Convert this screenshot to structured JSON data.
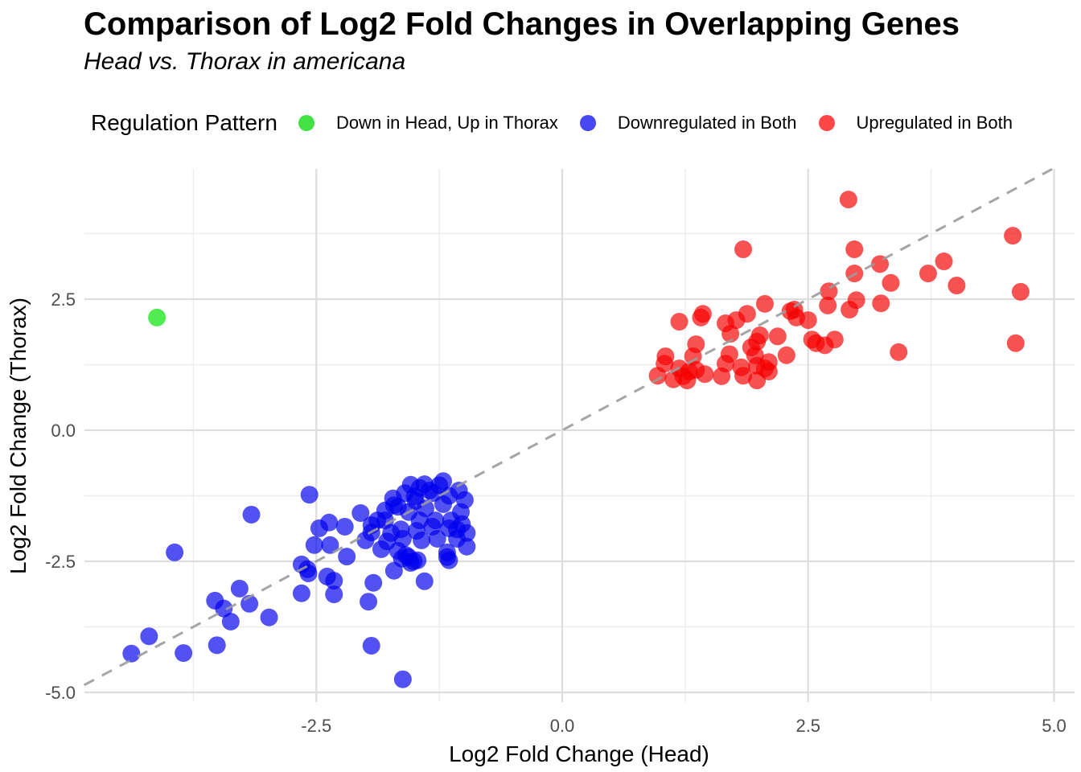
{
  "title": "Comparison of Log2 Fold Changes in Overlapping Genes",
  "subtitle": "Head vs. Thorax in americana",
  "legend": {
    "title": "Regulation Pattern",
    "items": [
      {
        "label": "Down in Head, Up in Thorax",
        "color": "#44E144"
      },
      {
        "label": "Downregulated in Both",
        "color": "#4747F3"
      },
      {
        "label": "Upregulated in Both",
        "color": "#FF4747"
      }
    ]
  },
  "chart_data": {
    "type": "scatter",
    "title": "Comparison of Log2 Fold Changes in Overlapping Genes",
    "subtitle": "Head vs. Thorax in americana",
    "xlabel": "Log2 Fold Change (Head)",
    "ylabel": "Log2 Fold Change (Thorax)",
    "xlim": [
      -4.86,
      5.21
    ],
    "ylim": [
      -5.18,
      4.98
    ],
    "grid": {
      "major_color": "#DDDDDD",
      "minor_color": "#EDEDED",
      "background": "#FFFFFF"
    },
    "legend_position": "top",
    "x_ticks": [
      {
        "value": -2.5,
        "label": "-2.5"
      },
      {
        "value": 0,
        "label": "0.0"
      },
      {
        "value": 2.5,
        "label": "2.5"
      },
      {
        "value": 5,
        "label": "5.0"
      }
    ],
    "y_ticks": [
      {
        "value": 2.5,
        "label": "2.5"
      },
      {
        "value": 0,
        "label": "0.0"
      },
      {
        "value": -2.5,
        "label": "-2.5"
      },
      {
        "value": -5,
        "label": "-5.0"
      }
    ],
    "x_minor": [
      -3.75,
      -1.25,
      1.25,
      3.75
    ],
    "y_minor": [
      3.75,
      1.25,
      -1.25,
      -3.75
    ],
    "reference_line": {
      "type": "identity",
      "slope": 1,
      "intercept": 0,
      "style": "dashed",
      "color": "#9B9B9B"
    },
    "series": [
      {
        "name": "Down in Head, Up in Thorax",
        "color": "#17E617",
        "opacity": 0.75,
        "points": [
          [
            -4.12,
            2.15
          ]
        ]
      },
      {
        "name": "Downregulated in Both",
        "color": "#0000EE",
        "opacity": 0.68,
        "points": [
          [
            -3.16,
            -1.61
          ],
          [
            -3.94,
            -2.33
          ],
          [
            -3.28,
            -3.02
          ],
          [
            -3.53,
            -3.25
          ],
          [
            -3.44,
            -3.4
          ],
          [
            -3.18,
            -3.31
          ],
          [
            -3.37,
            -3.65
          ],
          [
            -2.98,
            -3.57
          ],
          [
            -4.2,
            -3.93
          ],
          [
            -4.38,
            -4.26
          ],
          [
            -3.85,
            -4.25
          ],
          [
            -3.51,
            -4.1
          ],
          [
            -1.94,
            -4.11
          ],
          [
            -1.62,
            -4.75
          ],
          [
            -2.57,
            -1.23
          ],
          [
            -2.05,
            -1.58
          ],
          [
            -2.37,
            -1.76
          ],
          [
            -2.47,
            -1.87
          ],
          [
            -2.21,
            -1.84
          ],
          [
            -2.36,
            -2.19
          ],
          [
            -2.52,
            -2.19
          ],
          [
            -1.94,
            -1.81
          ],
          [
            -2.0,
            -2.1
          ],
          [
            -1.8,
            -1.72
          ],
          [
            -1.71,
            -1.43
          ],
          [
            -1.74,
            -1.96
          ],
          [
            -2.19,
            -2.41
          ],
          [
            -2.65,
            -2.56
          ],
          [
            -2.58,
            -2.73
          ],
          [
            -2.39,
            -2.79
          ],
          [
            -2.32,
            -2.87
          ],
          [
            -1.92,
            -2.91
          ],
          [
            -1.71,
            -2.68
          ],
          [
            -1.59,
            -2.38
          ],
          [
            -1.51,
            -2.5
          ],
          [
            -1.4,
            -2.88
          ],
          [
            -1.17,
            -2.33
          ],
          [
            -1.07,
            -1.89
          ],
          [
            -2.65,
            -3.11
          ],
          [
            -2.32,
            -3.13
          ],
          [
            -2.59,
            -2.65
          ],
          [
            -1.97,
            -3.27
          ],
          [
            -1.63,
            -2.45
          ],
          [
            -1.47,
            -2.48
          ],
          [
            -1.17,
            -2.42
          ],
          [
            -1.54,
            -1.04
          ],
          [
            -1.4,
            -1.03
          ],
          [
            -1.21,
            -0.97
          ],
          [
            -1.31,
            -1.2
          ],
          [
            -1.49,
            -1.35
          ],
          [
            -1.39,
            -1.49
          ],
          [
            -1.21,
            -1.41
          ],
          [
            -1.05,
            -1.15
          ],
          [
            -0.99,
            -1.33
          ],
          [
            -1.03,
            -1.56
          ],
          [
            -1.13,
            -1.72
          ],
          [
            -1.29,
            -1.72
          ],
          [
            -1.45,
            -1.72
          ],
          [
            -1.56,
            -1.56
          ],
          [
            -1.67,
            -1.46
          ],
          [
            -1.72,
            -1.3
          ],
          [
            -1.8,
            -1.53
          ],
          [
            -1.88,
            -1.72
          ],
          [
            -1.94,
            -1.95
          ],
          [
            -1.64,
            -1.89
          ],
          [
            -1.48,
            -1.92
          ],
          [
            -1.32,
            -1.84
          ],
          [
            -1.15,
            -1.87
          ],
          [
            -1.02,
            -1.79
          ],
          [
            -0.97,
            -1.96
          ],
          [
            -1.07,
            -2.07
          ],
          [
            -1.27,
            -2.07
          ],
          [
            -1.43,
            -2.1
          ],
          [
            -1.62,
            -2.07
          ],
          [
            -1.78,
            -2.12
          ],
          [
            -1.84,
            -2.27
          ],
          [
            -1.67,
            -2.3
          ],
          [
            -0.97,
            -2.22
          ],
          [
            -1.56,
            -2.42
          ],
          [
            -1.15,
            -2.48
          ],
          [
            -1.54,
            -2.53
          ],
          [
            -1.45,
            -1.1
          ],
          [
            -1.35,
            -1.15
          ],
          [
            -1.25,
            -1.05
          ],
          [
            -1.15,
            -1.25
          ],
          [
            -1.6,
            -1.2
          ],
          [
            -1.5,
            -1.26
          ]
        ]
      },
      {
        "name": "Upregulated in Both",
        "color": "#F50000",
        "opacity": 0.68,
        "points": [
          [
            1.19,
            2.07
          ],
          [
            1.43,
            2.22
          ],
          [
            1.41,
            2.15
          ],
          [
            1.66,
            2.04
          ],
          [
            1.71,
            1.84
          ],
          [
            1.77,
            2.1
          ],
          [
            1.88,
            2.22
          ],
          [
            2.01,
            1.81
          ],
          [
            1.98,
            1.69
          ],
          [
            2.19,
            1.79
          ],
          [
            2.32,
            2.27
          ],
          [
            2.38,
            2.15
          ],
          [
            2.5,
            2.1
          ],
          [
            2.54,
            1.73
          ],
          [
            2.58,
            1.66
          ],
          [
            2.67,
            1.62
          ],
          [
            2.77,
            1.73
          ],
          [
            1.36,
            1.64
          ],
          [
            1.33,
            1.41
          ],
          [
            1.05,
            1.41
          ],
          [
            1.04,
            1.27
          ],
          [
            0.97,
            1.04
          ],
          [
            1.19,
            1.18
          ],
          [
            1.23,
            1.03
          ],
          [
            1.29,
            1.12
          ],
          [
            1.36,
            1.15
          ],
          [
            1.7,
            1.45
          ],
          [
            1.66,
            1.27
          ],
          [
            1.82,
            1.2
          ],
          [
            1.84,
            1.04
          ],
          [
            1.96,
            1.43
          ],
          [
            1.98,
            1.23
          ],
          [
            2.06,
            1.18
          ],
          [
            2.1,
            1.12
          ],
          [
            2.28,
            1.43
          ],
          [
            1.62,
            1.03
          ],
          [
            1.98,
            0.95
          ],
          [
            1.84,
            3.45
          ],
          [
            2.06,
            2.41
          ],
          [
            2.36,
            2.3
          ],
          [
            2.91,
            4.4
          ],
          [
            2.97,
            3.45
          ],
          [
            3.23,
            3.17
          ],
          [
            2.97,
            2.99
          ],
          [
            2.71,
            2.65
          ],
          [
            2.7,
            2.38
          ],
          [
            3.34,
            2.81
          ],
          [
            2.99,
            2.48
          ],
          [
            2.92,
            2.3
          ],
          [
            3.24,
            2.42
          ],
          [
            3.72,
            2.99
          ],
          [
            3.88,
            3.22
          ],
          [
            4.01,
            2.76
          ],
          [
            4.58,
            3.71
          ],
          [
            4.66,
            2.64
          ],
          [
            4.61,
            1.66
          ],
          [
            3.42,
            1.49
          ],
          [
            1.92,
            1.58
          ],
          [
            1.45,
            1.07
          ],
          [
            1.13,
            0.97
          ],
          [
            1.27,
            0.95
          ],
          [
            2.1,
            1.3
          ]
        ]
      }
    ]
  }
}
